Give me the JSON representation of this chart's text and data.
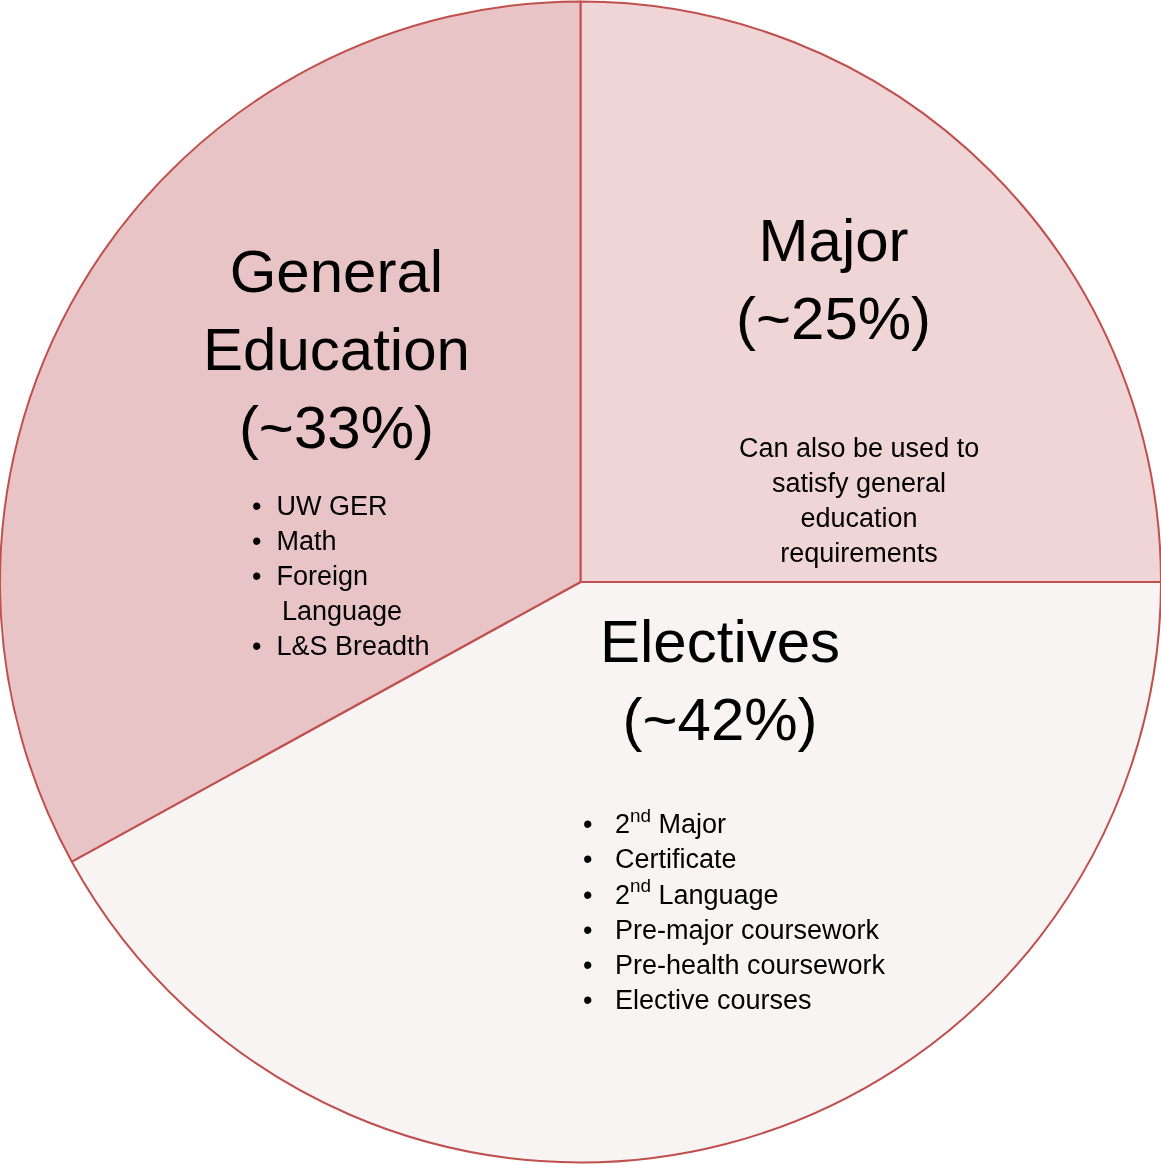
{
  "chart_data": {
    "type": "pie",
    "categories": [
      "Major",
      "Electives",
      "General Education"
    ],
    "values": [
      25,
      42,
      33
    ],
    "value_labels": [
      "(~25%)",
      "(~42%)",
      "(~33%)"
    ],
    "colors": [
      "#f0d5d7",
      "#f9f4f4",
      "#e8c4c6"
    ],
    "annotations": [
      "Can also be used to\nsatisfy general\neducation\nrequirements",
      "•   2$^{nd}$ Major\n•   Certificate\n•   2$^{nd}$ Language\n•   Pre-major coursework\n•   Pre-health coursework\n•   Elective courses",
      "•  UW GER\n•  Math\n•  Foreign Language\n•  L&S Breadth"
    ]
  }
}
